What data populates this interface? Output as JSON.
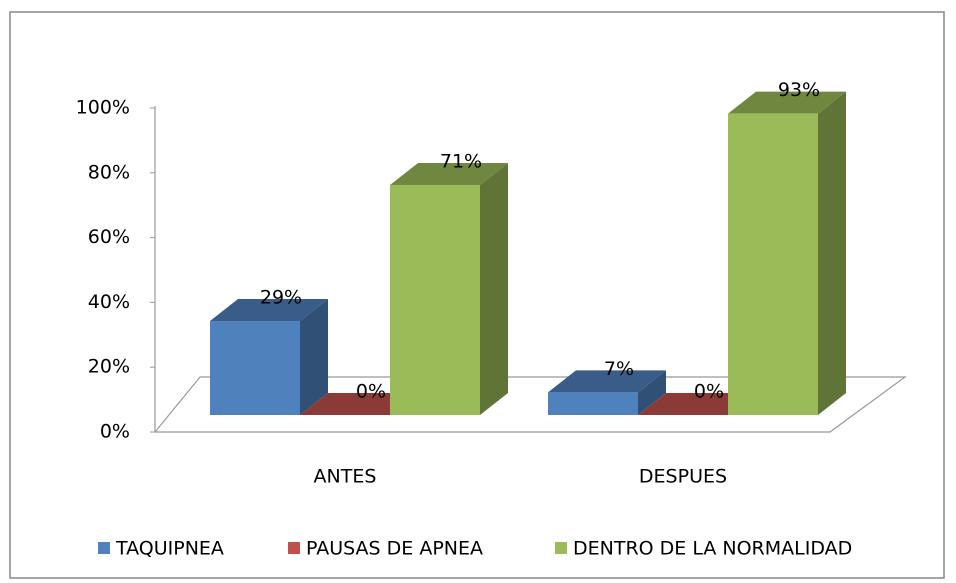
{
  "chart_data": {
    "type": "bar3d",
    "categories": [
      "ANTES",
      "DESPUES"
    ],
    "series": [
      {
        "name": "TAQUIPNEA",
        "color": "#4f81bd",
        "values": [
          29,
          7
        ],
        "value_labels": [
          "29%",
          "7%"
        ]
      },
      {
        "name": "PAUSAS DE APNEA",
        "color": "#c0504d",
        "values": [
          0,
          0
        ],
        "value_labels": [
          "0%",
          "0%"
        ]
      },
      {
        "name": "DENTRO DE LA NORMALIDAD",
        "color": "#9bbb59",
        "values": [
          71,
          93
        ],
        "value_labels": [
          "71%",
          "93%"
        ]
      }
    ],
    "ylim": [
      0,
      100
    ],
    "yticks": [
      {
        "value": 0,
        "label": "0%"
      },
      {
        "value": 20,
        "label": "20%"
      },
      {
        "value": 40,
        "label": "40%"
      },
      {
        "value": 60,
        "label": "60%"
      },
      {
        "value": 80,
        "label": "80%"
      },
      {
        "value": 100,
        "label": "100%"
      }
    ],
    "legend": "bottom",
    "grid": false
  }
}
